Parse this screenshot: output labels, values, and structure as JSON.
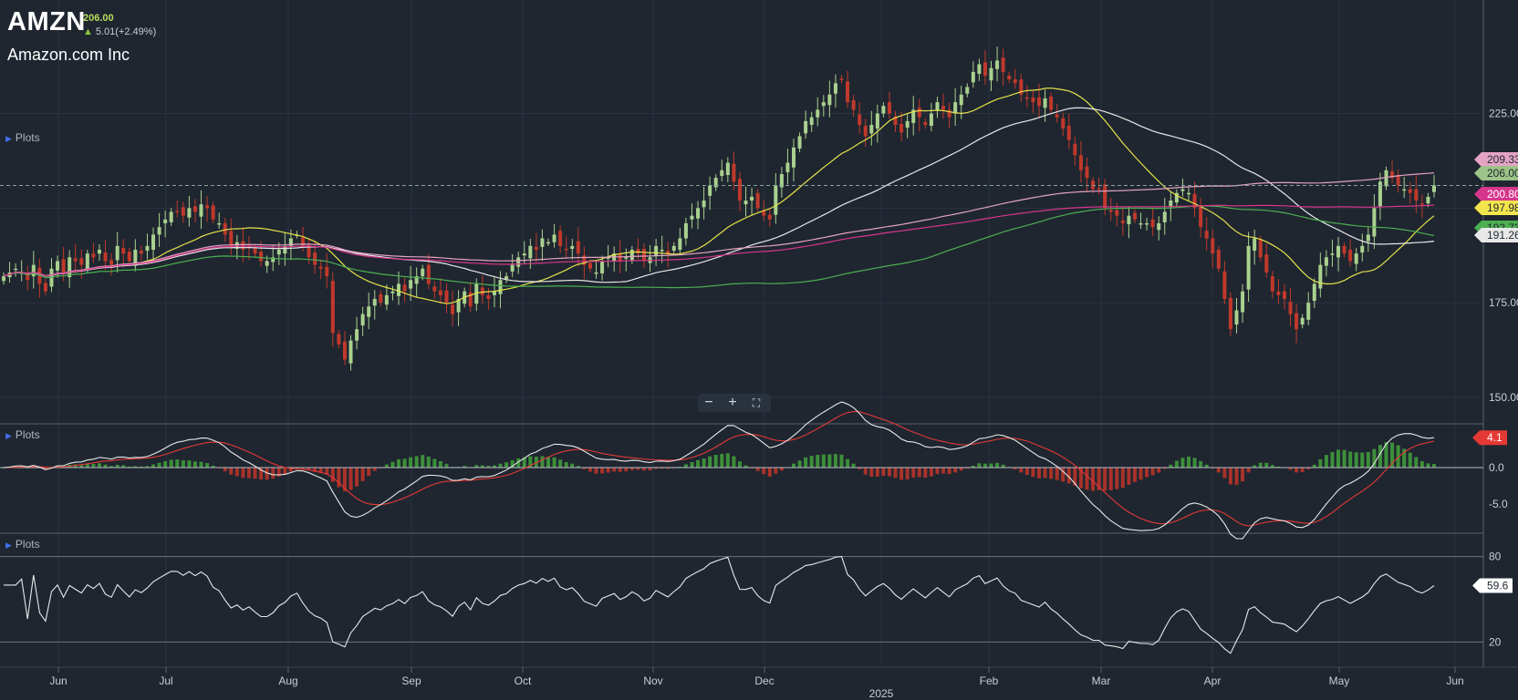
{
  "header": {
    "symbol": "AMZN",
    "price": "206.00",
    "change": "5.01(+2.49%)",
    "company": "Amazon.com Inc"
  },
  "panels": {
    "price_label": "Plots",
    "macd_label": "Plots",
    "rsi_label": "Plots"
  },
  "colors": {
    "background": "#1f2630",
    "up": "#a9d18e",
    "down": "#c0392b",
    "sma20": "#e6e24a",
    "sma50": "#e8e8e8",
    "sma100": "#4caf50",
    "sma150": "#e5a3c4",
    "sma200": "#d6368b"
  },
  "chart_data": [
    {
      "type": "candlestick",
      "panel": "price",
      "yticks": [
        "225.00",
        "175.00",
        "150.00"
      ],
      "ylim": [
        143,
        255
      ],
      "current_price_line": 206.0,
      "x_ticks": [
        "Jun",
        "Jul",
        "Aug",
        "Sep",
        "Oct",
        "Nov",
        "Dec",
        "Feb",
        "Mar",
        "Apr",
        "May",
        "Jun"
      ],
      "x_year_label": "2025",
      "closes": [
        182,
        183,
        184,
        183,
        181,
        185,
        180,
        178,
        184,
        186,
        183,
        187,
        186,
        185,
        188,
        187,
        189,
        186,
        185,
        190,
        188,
        186,
        189,
        188,
        190,
        193,
        195,
        197,
        199,
        199,
        198,
        200,
        199,
        201,
        200,
        197,
        196,
        193,
        190,
        191,
        189,
        190,
        188,
        186,
        186,
        187,
        189,
        190,
        192,
        193,
        190,
        187,
        185,
        184,
        182,
        167,
        164,
        160,
        165,
        168,
        172,
        174,
        176,
        175,
        177,
        178,
        180,
        178,
        181,
        182,
        184,
        180,
        178,
        177,
        175,
        172,
        176,
        178,
        174,
        180,
        177,
        176,
        178,
        181,
        182,
        185,
        187,
        188,
        190,
        189,
        192,
        191,
        193,
        190,
        189,
        190,
        188,
        185,
        184,
        183,
        186,
        187,
        188,
        186,
        187,
        189,
        188,
        186,
        187,
        190,
        189,
        188,
        190,
        192,
        196,
        198,
        200,
        202,
        206,
        208,
        210,
        212,
        207,
        202,
        202,
        203,
        200,
        198,
        197,
        206,
        209,
        212,
        216,
        219,
        223,
        224,
        226,
        228,
        230,
        233,
        234,
        228,
        226,
        222,
        219,
        222,
        225,
        227,
        225,
        222,
        220,
        223,
        226,
        224,
        222,
        225,
        228,
        226,
        224,
        228,
        230,
        232,
        236,
        238,
        235,
        237,
        239,
        236,
        234,
        233,
        230,
        229,
        228,
        227,
        229,
        226,
        224,
        221,
        218,
        214,
        210,
        208,
        205,
        205,
        200,
        199,
        198,
        196,
        198,
        197,
        196,
        196,
        195,
        196,
        199,
        202,
        204,
        205,
        204,
        200,
        195,
        192,
        188,
        184,
        176,
        168,
        173,
        178,
        190,
        192,
        187,
        183,
        178,
        177,
        176,
        172,
        168,
        171,
        175,
        180,
        185,
        187,
        188,
        190,
        188,
        186,
        188,
        190,
        193,
        200,
        207,
        210,
        208,
        206,
        205,
        204,
        202,
        201,
        203,
        206
      ]
    },
    {
      "type": "line",
      "panel": "price-moving-averages",
      "series": [
        {
          "values": [
            197.98
          ],
          "color": "#e6e24a"
        },
        {
          "values": [
            191.26
          ],
          "color": "#e8e8e8"
        },
        {
          "values": [
            192.73
          ],
          "color": "#4caf50"
        },
        {
          "values": [
            209.33
          ],
          "color": "#e5a3c4"
        },
        {
          "values": [
            200.8
          ],
          "color": "#d6368b"
        }
      ],
      "badges": [
        {
          "label": "209.33",
          "color": "#e5a3c4",
          "text_color": "#1f2630"
        },
        {
          "label": "206.00",
          "color": "#9cc488",
          "text_color": "#1f2630"
        },
        {
          "label": "200.80",
          "color": "#d6368b",
          "text_color": "#ffffff"
        },
        {
          "label": "197.98",
          "color": "#f3e64d",
          "text_color": "#1f2630"
        },
        {
          "label": "192.73",
          "color": "#4caf50",
          "text_color": "#1f2630"
        },
        {
          "label": "191.26",
          "color": "#e8e8e8",
          "text_color": "#1f2630"
        }
      ]
    },
    {
      "type": "bar+line",
      "panel": "macd",
      "yticks": [
        "0.0",
        "-5.0"
      ],
      "ylim": [
        -9,
        6
      ],
      "last_value_label": "4.1",
      "series": [
        {
          "values": [
            4.1
          ],
          "color": "#e8e8e8"
        },
        {
          "values": [
            3.6
          ],
          "color": "#e53935"
        }
      ]
    },
    {
      "type": "line",
      "panel": "rsi",
      "yticks": [
        "80",
        "20"
      ],
      "ylim": [
        0,
        100
      ],
      "levels": [
        80,
        20
      ],
      "last_value_label": "59.6"
    }
  ]
}
